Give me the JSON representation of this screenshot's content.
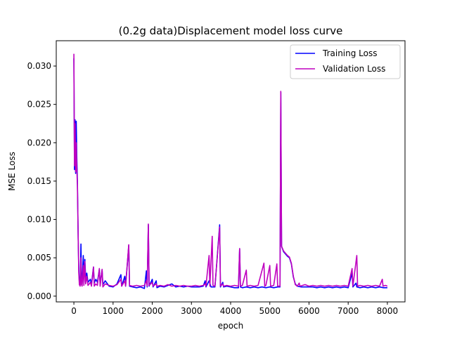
{
  "chart_data": {
    "type": "line",
    "title": "(0.2g data)Displacement model loss curve",
    "xlabel": "epoch",
    "ylabel": "MSE Loss",
    "xlim": [
      -450,
      8450
    ],
    "ylim": [
      -0.00075,
      0.0333
    ],
    "x_ticks": [
      0,
      1000,
      2000,
      3000,
      4000,
      5000,
      6000,
      7000,
      8000
    ],
    "y_ticks": [
      0.0,
      0.005,
      0.01,
      0.015,
      0.02,
      0.025,
      0.03
    ],
    "x_tick_labels": [
      "0",
      "1000",
      "2000",
      "3000",
      "4000",
      "5000",
      "6000",
      "7000",
      "8000"
    ],
    "y_tick_labels": [
      "0.000",
      "0.005",
      "0.010",
      "0.015",
      "0.020",
      "0.025",
      "0.030"
    ],
    "grid": false,
    "legend_position": "top-right",
    "series": [
      {
        "name": "Training Loss",
        "color": "#0000ff",
        "points": [
          [
            0,
            0.031
          ],
          [
            15,
            0.0165
          ],
          [
            30,
            0.023
          ],
          [
            45,
            0.016
          ],
          [
            60,
            0.0228
          ],
          [
            75,
            0.018
          ],
          [
            90,
            0.015
          ],
          [
            110,
            0.0075
          ],
          [
            125,
            0.0035
          ],
          [
            140,
            0.0018
          ],
          [
            160,
            0.0015
          ],
          [
            180,
            0.0068
          ],
          [
            195,
            0.002
          ],
          [
            210,
            0.0016
          ],
          [
            240,
            0.0053
          ],
          [
            255,
            0.0018
          ],
          [
            280,
            0.0048
          ],
          [
            300,
            0.0025
          ],
          [
            330,
            0.003
          ],
          [
            360,
            0.0018
          ],
          [
            420,
            0.0022
          ],
          [
            450,
            0.0016
          ],
          [
            500,
            0.0038
          ],
          [
            520,
            0.0017
          ],
          [
            560,
            0.0022
          ],
          [
            600,
            0.0018
          ],
          [
            650,
            0.0035
          ],
          [
            670,
            0.0016
          ],
          [
            720,
            0.0034
          ],
          [
            740,
            0.0015
          ],
          [
            800,
            0.002
          ],
          [
            900,
            0.0013
          ],
          [
            1000,
            0.0012
          ],
          [
            1100,
            0.0016
          ],
          [
            1200,
            0.0028
          ],
          [
            1220,
            0.0013
          ],
          [
            1300,
            0.0026
          ],
          [
            1320,
            0.0013
          ],
          [
            1400,
            0.0066
          ],
          [
            1420,
            0.0013
          ],
          [
            1500,
            0.0012
          ],
          [
            1600,
            0.0011
          ],
          [
            1700,
            0.0012
          ],
          [
            1800,
            0.001
          ],
          [
            1850,
            0.0033
          ],
          [
            1870,
            0.0012
          ],
          [
            1900,
            0.0093
          ],
          [
            1920,
            0.0013
          ],
          [
            2000,
            0.0022
          ],
          [
            2020,
            0.0012
          ],
          [
            2100,
            0.002
          ],
          [
            2120,
            0.0011
          ],
          [
            2200,
            0.0013
          ],
          [
            2300,
            0.0012
          ],
          [
            2400,
            0.0014
          ],
          [
            2500,
            0.0016
          ],
          [
            2600,
            0.0012
          ],
          [
            2700,
            0.0013
          ],
          [
            2800,
            0.0012
          ],
          [
            2900,
            0.0013
          ],
          [
            3000,
            0.0012
          ],
          [
            3100,
            0.0012
          ],
          [
            3200,
            0.0012
          ],
          [
            3300,
            0.0013
          ],
          [
            3350,
            0.002
          ],
          [
            3370,
            0.0012
          ],
          [
            3450,
            0.002
          ],
          [
            3500,
            0.0012
          ],
          [
            3600,
            0.0012
          ],
          [
            3720,
            0.0093
          ],
          [
            3740,
            0.0012
          ],
          [
            3800,
            0.0018
          ],
          [
            3820,
            0.0012
          ],
          [
            3900,
            0.0013
          ],
          [
            4000,
            0.0012
          ],
          [
            4100,
            0.0011
          ],
          [
            4200,
            0.0011
          ],
          [
            4230,
            0.0062
          ],
          [
            4250,
            0.0012
          ],
          [
            4300,
            0.0011
          ],
          [
            4400,
            0.0012
          ],
          [
            4500,
            0.0011
          ],
          [
            4600,
            0.0012
          ],
          [
            4700,
            0.0011
          ],
          [
            4800,
            0.0012
          ],
          [
            4900,
            0.0011
          ],
          [
            5000,
            0.0012
          ],
          [
            5100,
            0.0011
          ],
          [
            5200,
            0.0012
          ],
          [
            5260,
            0.0012
          ],
          [
            5280,
            0.0266
          ],
          [
            5300,
            0.0065
          ],
          [
            5350,
            0.0058
          ],
          [
            5400,
            0.0055
          ],
          [
            5450,
            0.0052
          ],
          [
            5500,
            0.005
          ],
          [
            5550,
            0.0042
          ],
          [
            5600,
            0.0025
          ],
          [
            5650,
            0.0016
          ],
          [
            5700,
            0.0013
          ],
          [
            5800,
            0.0012
          ],
          [
            5900,
            0.0012
          ],
          [
            6000,
            0.0012
          ],
          [
            6100,
            0.0012
          ],
          [
            6200,
            0.0011
          ],
          [
            6300,
            0.0012
          ],
          [
            6400,
            0.0011
          ],
          [
            6500,
            0.0012
          ],
          [
            6600,
            0.0011
          ],
          [
            6700,
            0.0012
          ],
          [
            6800,
            0.0011
          ],
          [
            6900,
            0.0012
          ],
          [
            7000,
            0.0011
          ],
          [
            7100,
            0.003
          ],
          [
            7120,
            0.0012
          ],
          [
            7200,
            0.0017
          ],
          [
            7220,
            0.0012
          ],
          [
            7300,
            0.0011
          ],
          [
            7400,
            0.0012
          ],
          [
            7500,
            0.0011
          ],
          [
            7600,
            0.0012
          ],
          [
            7700,
            0.0011
          ],
          [
            7800,
            0.0012
          ],
          [
            7900,
            0.0011
          ],
          [
            8000,
            0.0011
          ]
        ]
      },
      {
        "name": "Validation Loss",
        "color": "#bf00bf",
        "points": [
          [
            0,
            0.0316
          ],
          [
            15,
            0.017
          ],
          [
            30,
            0.0225
          ],
          [
            45,
            0.0162
          ],
          [
            60,
            0.02
          ],
          [
            75,
            0.0165
          ],
          [
            90,
            0.0145
          ],
          [
            110,
            0.0076
          ],
          [
            125,
            0.003
          ],
          [
            140,
            0.0015
          ],
          [
            160,
            0.0013
          ],
          [
            180,
            0.005
          ],
          [
            195,
            0.0015
          ],
          [
            210,
            0.0013
          ],
          [
            240,
            0.004
          ],
          [
            255,
            0.0014
          ],
          [
            280,
            0.0045
          ],
          [
            300,
            0.0016
          ],
          [
            330,
            0.0026
          ],
          [
            360,
            0.0014
          ],
          [
            420,
            0.0018
          ],
          [
            450,
            0.0013
          ],
          [
            500,
            0.0038
          ],
          [
            520,
            0.0013
          ],
          [
            560,
            0.0016
          ],
          [
            600,
            0.0014
          ],
          [
            650,
            0.0036
          ],
          [
            670,
            0.0013
          ],
          [
            720,
            0.0035
          ],
          [
            740,
            0.0012
          ],
          [
            800,
            0.0016
          ],
          [
            900,
            0.0014
          ],
          [
            1000,
            0.0013
          ],
          [
            1100,
            0.0015
          ],
          [
            1200,
            0.0022
          ],
          [
            1220,
            0.0013
          ],
          [
            1300,
            0.002
          ],
          [
            1320,
            0.0013
          ],
          [
            1400,
            0.0067
          ],
          [
            1420,
            0.0014
          ],
          [
            1500,
            0.0013
          ],
          [
            1600,
            0.0014
          ],
          [
            1700,
            0.0013
          ],
          [
            1800,
            0.0014
          ],
          [
            1850,
            0.002
          ],
          [
            1870,
            0.0013
          ],
          [
            1900,
            0.0094
          ],
          [
            1920,
            0.0014
          ],
          [
            2000,
            0.0018
          ],
          [
            2020,
            0.0013
          ],
          [
            2100,
            0.0016
          ],
          [
            2120,
            0.0013
          ],
          [
            2200,
            0.0014
          ],
          [
            2300,
            0.0013
          ],
          [
            2400,
            0.0015
          ],
          [
            2500,
            0.0013
          ],
          [
            2600,
            0.0014
          ],
          [
            2700,
            0.0013
          ],
          [
            2800,
            0.0014
          ],
          [
            2900,
            0.0013
          ],
          [
            3000,
            0.0013
          ],
          [
            3100,
            0.0014
          ],
          [
            3200,
            0.0013
          ],
          [
            3300,
            0.0014
          ],
          [
            3350,
            0.0016
          ],
          [
            3370,
            0.0013
          ],
          [
            3450,
            0.0053
          ],
          [
            3470,
            0.0013
          ],
          [
            3530,
            0.0078
          ],
          [
            3550,
            0.0014
          ],
          [
            3600,
            0.0013
          ],
          [
            3720,
            0.009
          ],
          [
            3740,
            0.0013
          ],
          [
            3800,
            0.0016
          ],
          [
            3820,
            0.0013
          ],
          [
            3900,
            0.0014
          ],
          [
            4000,
            0.0013
          ],
          [
            4100,
            0.0014
          ],
          [
            4200,
            0.0013
          ],
          [
            4230,
            0.0062
          ],
          [
            4250,
            0.0013
          ],
          [
            4300,
            0.0014
          ],
          [
            4400,
            0.0034
          ],
          [
            4420,
            0.0013
          ],
          [
            4500,
            0.0014
          ],
          [
            4600,
            0.0013
          ],
          [
            4700,
            0.0014
          ],
          [
            4850,
            0.0043
          ],
          [
            4870,
            0.0013
          ],
          [
            4900,
            0.0014
          ],
          [
            5000,
            0.004
          ],
          [
            5020,
            0.0013
          ],
          [
            5100,
            0.0014
          ],
          [
            5180,
            0.0042
          ],
          [
            5200,
            0.0013
          ],
          [
            5260,
            0.0013
          ],
          [
            5280,
            0.0267
          ],
          [
            5300,
            0.0065
          ],
          [
            5350,
            0.0059
          ],
          [
            5400,
            0.0056
          ],
          [
            5450,
            0.0053
          ],
          [
            5500,
            0.0051
          ],
          [
            5550,
            0.0043
          ],
          [
            5600,
            0.0026
          ],
          [
            5650,
            0.0015
          ],
          [
            5700,
            0.0013
          ],
          [
            5750,
            0.0017
          ],
          [
            5770,
            0.0013
          ],
          [
            5900,
            0.0015
          ],
          [
            6000,
            0.0013
          ],
          [
            6100,
            0.0014
          ],
          [
            6200,
            0.0013
          ],
          [
            6300,
            0.0014
          ],
          [
            6400,
            0.0013
          ],
          [
            6500,
            0.0014
          ],
          [
            6600,
            0.0013
          ],
          [
            6700,
            0.0014
          ],
          [
            6800,
            0.0013
          ],
          [
            6900,
            0.0014
          ],
          [
            7000,
            0.0013
          ],
          [
            7100,
            0.0036
          ],
          [
            7120,
            0.0013
          ],
          [
            7220,
            0.0053
          ],
          [
            7240,
            0.0013
          ],
          [
            7300,
            0.0014
          ],
          [
            7400,
            0.0013
          ],
          [
            7500,
            0.0014
          ],
          [
            7600,
            0.0013
          ],
          [
            7700,
            0.0014
          ],
          [
            7800,
            0.0013
          ],
          [
            7870,
            0.0022
          ],
          [
            7890,
            0.0013
          ],
          [
            7950,
            0.0014
          ],
          [
            8000,
            0.0013
          ]
        ]
      }
    ]
  }
}
